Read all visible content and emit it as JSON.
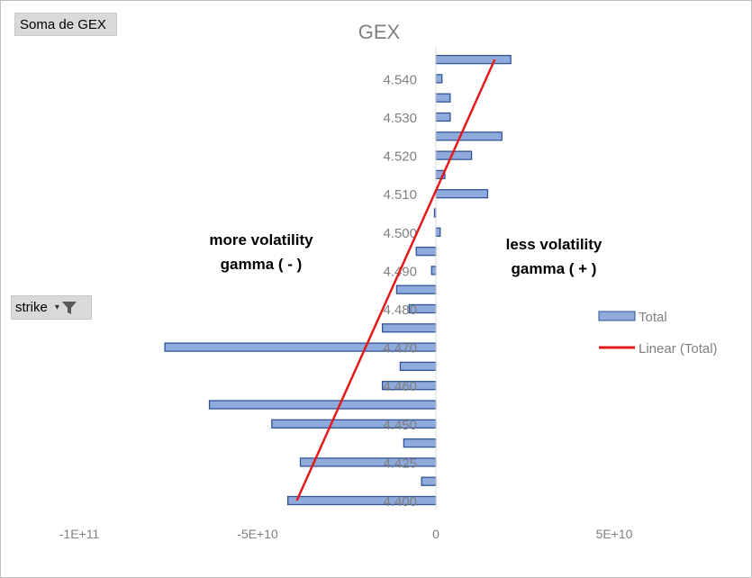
{
  "filter_buttons": {
    "value_field": "Soma de GEX",
    "axis_field": "strike"
  },
  "icons": {
    "dropdown": "dropdown-arrow-icon",
    "filter": "funnel-filter-icon"
  },
  "annotations": {
    "left_line1": "more volatility",
    "left_line2": "gamma ( - )",
    "right_line1": "less volatility",
    "right_line2": "gamma ( + )"
  },
  "colors": {
    "bar_fill": "#8faadc",
    "bar_stroke": "#2f5597",
    "trend": "#e31a1c",
    "axis_text": "#808080"
  },
  "chart_data": {
    "type": "bar",
    "orientation": "horizontal",
    "title": "GEX",
    "xlabel": "",
    "ylabel": "",
    "xlim": [
      -100000000000,
      60000000000
    ],
    "x_ticks": [
      -100000000000,
      -50000000000,
      0,
      50000000000
    ],
    "x_tick_labels": [
      "-1E+11",
      "-5E+10",
      "0",
      "5E+10"
    ],
    "y_tick_labels": [
      "4.400",
      "4.425",
      "4.450",
      "4.460",
      "4.470",
      "4.480",
      "4.490",
      "4.500",
      "4.510",
      "4.520",
      "4.530",
      "4.540"
    ],
    "y_tick_bar_index": [
      0,
      2,
      4,
      6,
      8,
      10,
      12,
      14,
      16,
      18,
      20,
      22
    ],
    "categories": [
      "4.400",
      "",
      "4.425",
      "",
      "4.450",
      "",
      "4.460",
      "",
      "4.470",
      "",
      "4.480",
      "",
      "4.490",
      "",
      "4.500",
      "",
      "4.510",
      "",
      "4.520",
      "",
      "4.530",
      "",
      "4.540",
      ""
    ],
    "series": [
      {
        "name": "Total",
        "values": [
          -41500000000,
          -4000000000,
          -38000000000,
          -9000000000,
          -46000000000,
          -63500000000,
          -15000000000,
          -10000000000,
          -76000000000,
          -15000000000,
          -7500000000,
          -11000000000,
          -1200000000,
          -5500000000,
          1200000000,
          -400000000,
          14500000000,
          2500000000,
          10000000000,
          18500000000,
          4000000000,
          4000000000,
          1700000000,
          21000000000
        ]
      },
      {
        "name": "Linear (Total)",
        "kind": "trendline",
        "start": -39000000000,
        "end": 16500000000
      }
    ],
    "legend_position": "right",
    "grid": false
  }
}
